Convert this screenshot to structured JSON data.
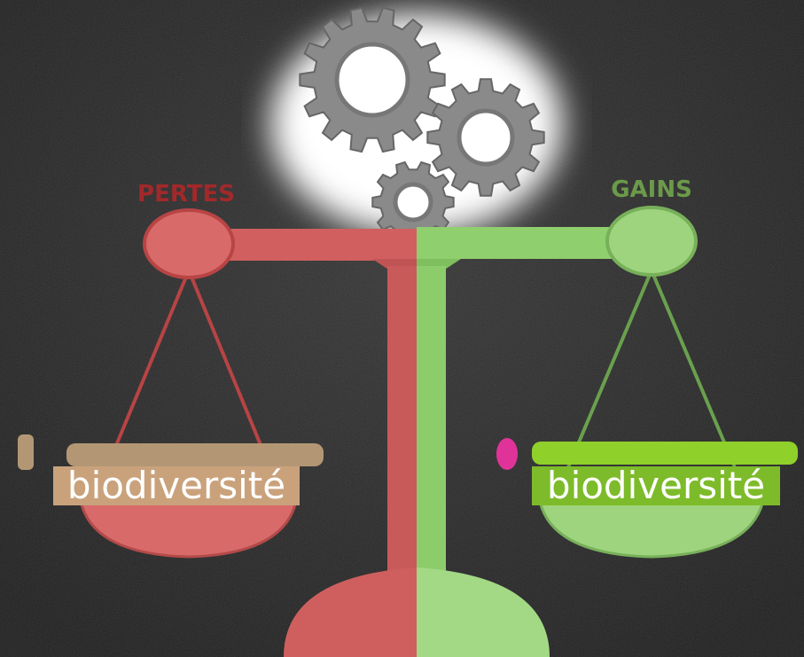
{
  "left": {
    "title": "PERTES",
    "label": "biodiversité"
  },
  "right": {
    "title": "GAINS",
    "label": "biodiversité"
  }
}
